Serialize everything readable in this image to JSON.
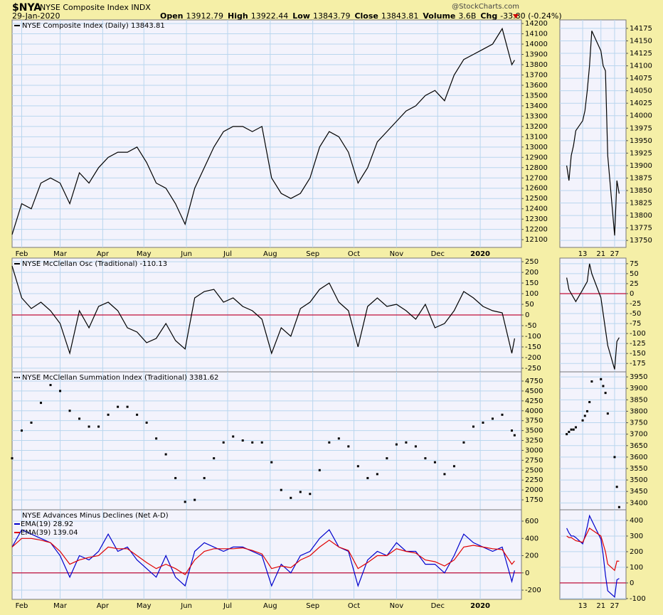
{
  "header": {
    "symbol": "$NYA",
    "name": "NYSE Composite Index INDX",
    "date": "29-Jan-2020",
    "source": "@StockCharts.com",
    "quote": [
      {
        "label": "Open",
        "value": "13912.79"
      },
      {
        "label": "High",
        "value": "13922.44"
      },
      {
        "label": "Low",
        "value": "13843.79"
      },
      {
        "label": "Close",
        "value": "13843.81"
      },
      {
        "label": "Volume",
        "value": "3.6B"
      },
      {
        "label": "Chg",
        "value": "-33.80 (-0.24%)"
      }
    ]
  },
  "chart_data": [
    {
      "type": "line",
      "title": "NYSE Composite Index (Daily) 13843.81",
      "color": "#000000",
      "grid": true,
      "x": [
        0,
        7,
        14,
        21,
        28,
        35,
        42,
        49,
        56,
        63,
        70,
        77,
        84,
        91,
        98,
        105,
        112,
        119,
        126,
        133,
        140,
        147,
        154,
        161,
        168,
        175,
        182,
        189,
        196,
        203,
        210,
        217,
        224,
        231,
        238,
        245,
        252,
        259,
        266,
        273,
        280,
        287,
        294,
        301,
        308,
        315,
        322,
        329,
        336,
        343,
        350,
        357,
        364,
        366
      ],
      "values": [
        12150,
        12450,
        12400,
        12650,
        12700,
        12650,
        12450,
        12750,
        12650,
        12800,
        12900,
        12950,
        12950,
        13000,
        12850,
        12650,
        12600,
        12450,
        12250,
        12600,
        12800,
        13000,
        13150,
        13200,
        13200,
        13150,
        13200,
        12700,
        12550,
        12500,
        12550,
        12700,
        13000,
        13150,
        13100,
        12950,
        12650,
        12800,
        13050,
        13150,
        13250,
        13350,
        13400,
        13500,
        13550,
        13450,
        13700,
        13850,
        13900,
        13950,
        14000,
        14150,
        13800,
        13843.81
      ],
      "xlim": [
        0,
        371
      ],
      "ylim": [
        12025,
        14235
      ],
      "xticks": [
        {
          "value": 7,
          "label": "Feb"
        },
        {
          "value": 35,
          "label": "Mar"
        },
        {
          "value": 66,
          "label": "Apr"
        },
        {
          "value": 96,
          "label": "May"
        },
        {
          "value": 127,
          "label": "Jun"
        },
        {
          "value": 157,
          "label": "Jul"
        },
        {
          "value": 188,
          "label": "Aug"
        },
        {
          "value": 219,
          "label": "Sep"
        },
        {
          "value": 249,
          "label": "Oct"
        },
        {
          "value": 280,
          "label": "Nov"
        },
        {
          "value": 310,
          "label": "Dec"
        },
        {
          "value": 341,
          "label": "2020"
        }
      ],
      "yticks": [
        12100,
        12200,
        12300,
        12400,
        12500,
        12600,
        12700,
        12800,
        12900,
        13000,
        13100,
        13200,
        13300,
        13400,
        13500,
        13600,
        13700,
        13800,
        13900,
        14000,
        14100,
        14200
      ]
    },
    {
      "type": "line",
      "title": "NYSE McClellan Osc (Traditional) -110.13",
      "color": "#000000",
      "grid": true,
      "hline": 0,
      "x": [
        0,
        7,
        14,
        21,
        28,
        35,
        42,
        49,
        56,
        63,
        70,
        77,
        84,
        91,
        98,
        105,
        112,
        119,
        126,
        133,
        140,
        147,
        154,
        161,
        168,
        175,
        182,
        189,
        196,
        203,
        210,
        217,
        224,
        231,
        238,
        245,
        252,
        259,
        266,
        273,
        280,
        287,
        294,
        301,
        308,
        315,
        322,
        329,
        336,
        343,
        350,
        357,
        364,
        366
      ],
      "values": [
        230,
        80,
        30,
        60,
        20,
        -40,
        -180,
        20,
        -60,
        40,
        60,
        20,
        -60,
        -80,
        -130,
        -110,
        -40,
        -120,
        -160,
        80,
        110,
        120,
        60,
        80,
        40,
        20,
        -20,
        -180,
        -60,
        -100,
        30,
        60,
        120,
        150,
        60,
        20,
        -150,
        40,
        80,
        40,
        50,
        20,
        -20,
        50,
        -60,
        -40,
        20,
        110,
        80,
        40,
        20,
        10,
        -180,
        -110.13
      ],
      "xlim": [
        0,
        371
      ],
      "ylim": [
        -267,
        267
      ],
      "xticks": [
        {
          "value": 7,
          "label": "Feb"
        },
        {
          "value": 35,
          "label": "Mar"
        },
        {
          "value": 66,
          "label": "Apr"
        },
        {
          "value": 96,
          "label": "May"
        },
        {
          "value": 127,
          "label": "Jun"
        },
        {
          "value": 157,
          "label": "Jul"
        },
        {
          "value": 188,
          "label": "Aug"
        },
        {
          "value": 219,
          "label": "Sep"
        },
        {
          "value": 249,
          "label": "Oct"
        },
        {
          "value": 280,
          "label": "Nov"
        },
        {
          "value": 310,
          "label": "Dec"
        },
        {
          "value": 341,
          "label": "2020"
        }
      ],
      "yticks": [
        -250,
        -200,
        -150,
        -100,
        -50,
        0,
        50,
        100,
        150,
        200,
        250
      ]
    },
    {
      "type": "scatter",
      "title": "NYSE McClellan Summation Index (Traditional) 3381.62",
      "color": "#000000",
      "grid": true,
      "x": [
        0,
        7,
        14,
        21,
        28,
        35,
        42,
        49,
        56,
        63,
        70,
        77,
        84,
        91,
        98,
        105,
        112,
        119,
        126,
        133,
        140,
        147,
        154,
        161,
        168,
        175,
        182,
        189,
        196,
        203,
        210,
        217,
        224,
        231,
        238,
        245,
        252,
        259,
        266,
        273,
        280,
        287,
        294,
        301,
        308,
        315,
        322,
        329,
        336,
        343,
        350,
        357,
        364,
        366
      ],
      "values": [
        2800,
        3500,
        3700,
        4200,
        4650,
        4500,
        4000,
        3800,
        3600,
        3600,
        3900,
        4100,
        4100,
        3900,
        3700,
        3300,
        2900,
        2300,
        1700,
        1750,
        2300,
        2800,
        3200,
        3350,
        3250,
        3200,
        3200,
        2700,
        2000,
        1800,
        1950,
        1900,
        2500,
        3200,
        3300,
        3100,
        2600,
        2300,
        2400,
        2800,
        3150,
        3200,
        3100,
        2800,
        2700,
        2400,
        2600,
        3200,
        3600,
        3700,
        3800,
        3900,
        3500,
        3381.62
      ],
      "xlim": [
        0,
        371
      ],
      "ylim": [
        1500,
        4983
      ],
      "xticks": [
        {
          "value": 7,
          "label": "Feb"
        },
        {
          "value": 35,
          "label": "Mar"
        },
        {
          "value": 66,
          "label": "Apr"
        },
        {
          "value": 96,
          "label": "May"
        },
        {
          "value": 127,
          "label": "Jun"
        },
        {
          "value": 157,
          "label": "Jul"
        },
        {
          "value": 188,
          "label": "Aug"
        },
        {
          "value": 219,
          "label": "Sep"
        },
        {
          "value": 249,
          "label": "Oct"
        },
        {
          "value": 280,
          "label": "Nov"
        },
        {
          "value": 310,
          "label": "Dec"
        },
        {
          "value": 341,
          "label": "2020"
        }
      ],
      "yticks": [
        1750,
        2000,
        2250,
        2500,
        2750,
        3000,
        3250,
        3500,
        3750,
        4000,
        4250,
        4500,
        4750
      ]
    },
    {
      "type": "line",
      "title": "NYSE Advances Minus Declines (Net A-D)",
      "grid": true,
      "hline": 0,
      "x": [
        0,
        7,
        14,
        21,
        28,
        35,
        42,
        49,
        56,
        63,
        70,
        77,
        84,
        91,
        98,
        105,
        112,
        119,
        126,
        133,
        140,
        147,
        154,
        161,
        168,
        175,
        182,
        189,
        196,
        203,
        210,
        217,
        224,
        231,
        238,
        245,
        252,
        259,
        266,
        273,
        280,
        287,
        294,
        301,
        308,
        315,
        322,
        329,
        336,
        343,
        350,
        357,
        364,
        366
      ],
      "series": [
        {
          "name": "EMA(19) 28.92",
          "color": "#0000cc",
          "values": [
            300,
            500,
            450,
            400,
            350,
            200,
            -50,
            200,
            150,
            250,
            450,
            250,
            300,
            150,
            50,
            -50,
            200,
            -50,
            -150,
            250,
            350,
            300,
            250,
            300,
            300,
            250,
            200,
            -150,
            100,
            0,
            200,
            250,
            400,
            500,
            300,
            250,
            -150,
            150,
            250,
            200,
            350,
            250,
            250,
            100,
            100,
            0,
            200,
            450,
            350,
            300,
            250,
            300,
            -100,
            28.92
          ]
        },
        {
          "name": "EMA(39) 139.04",
          "color": "#e00000",
          "values": [
            300,
            400,
            400,
            380,
            350,
            250,
            100,
            150,
            180,
            200,
            300,
            280,
            280,
            200,
            120,
            50,
            100,
            50,
            -20,
            150,
            250,
            280,
            280,
            280,
            290,
            260,
            220,
            50,
            80,
            60,
            150,
            200,
            300,
            380,
            300,
            260,
            50,
            120,
            200,
            200,
            280,
            250,
            230,
            150,
            130,
            80,
            150,
            300,
            320,
            300,
            280,
            270,
            100,
            139.04
          ]
        }
      ],
      "xlim": [
        0,
        371
      ],
      "ylim": [
        -307,
        732
      ],
      "xticks": [
        {
          "value": 7,
          "label": "Feb"
        },
        {
          "value": 35,
          "label": "Mar"
        },
        {
          "value": 66,
          "label": "Apr"
        },
        {
          "value": 96,
          "label": "May"
        },
        {
          "value": 127,
          "label": "Jun"
        },
        {
          "value": 157,
          "label": "Jul"
        },
        {
          "value": 188,
          "label": "Aug"
        },
        {
          "value": 219,
          "label": "Sep"
        },
        {
          "value": 249,
          "label": "Oct"
        },
        {
          "value": 280,
          "label": "Nov"
        },
        {
          "value": 310,
          "label": "Dec"
        },
        {
          "value": 341,
          "label": "2020"
        }
      ],
      "yticks": [
        -200,
        0,
        200,
        400,
        600
      ]
    },
    {
      "type": "line",
      "color": "#000000",
      "grid": true,
      "x": [
        6,
        7,
        8,
        9,
        10,
        13,
        14,
        15,
        16,
        17,
        21,
        22,
        23,
        24,
        27,
        28,
        29
      ],
      "values": [
        13900,
        13870,
        13920,
        13940,
        13970,
        13990,
        14010,
        14050,
        14100,
        14170,
        14130,
        14100,
        14090,
        13920,
        13760,
        13870,
        13843.81
      ],
      "xlim": [
        3,
        32
      ],
      "ylim": [
        13736,
        14192
      ],
      "xticks": [
        13,
        21,
        27
      ],
      "yticks": [
        13750,
        13775,
        13800,
        13825,
        13850,
        13875,
        13900,
        13925,
        13950,
        13975,
        14000,
        14025,
        14050,
        14075,
        14100,
        14125,
        14150,
        14175
      ]
    },
    {
      "type": "line",
      "color": "#000000",
      "grid": true,
      "hline": 0,
      "x": [
        6,
        7,
        8,
        9,
        10,
        13,
        14,
        15,
        16,
        17,
        21,
        22,
        23,
        24,
        27,
        28,
        29
      ],
      "values": [
        40,
        10,
        0,
        -10,
        -20,
        10,
        20,
        30,
        75,
        50,
        -10,
        -50,
        -90,
        -130,
        -190,
        -120,
        -110.13
      ],
      "xlim": [
        3,
        32
      ],
      "ylim": [
        -196,
        89
      ],
      "xticks": [
        13,
        21,
        27
      ],
      "yticks": [
        -175,
        -150,
        -125,
        -100,
        -75,
        -50,
        -25,
        0,
        25,
        50,
        75
      ]
    },
    {
      "type": "scatter",
      "color": "#000000",
      "grid": true,
      "x": [
        6,
        7,
        8,
        9,
        10,
        13,
        14,
        15,
        16,
        17,
        21,
        22,
        23,
        24,
        27,
        28,
        29
      ],
      "values": [
        3700,
        3710,
        3720,
        3720,
        3730,
        3760,
        3780,
        3800,
        3840,
        3930,
        3940,
        3910,
        3880,
        3790,
        3600,
        3470,
        3381.62
      ],
      "xlim": [
        3,
        32
      ],
      "ylim": [
        3370,
        3972
      ],
      "xticks": [
        13,
        21,
        27
      ],
      "yticks": [
        3400,
        3450,
        3500,
        3550,
        3600,
        3650,
        3700,
        3750,
        3800,
        3850,
        3900,
        3950
      ]
    },
    {
      "type": "line",
      "grid": true,
      "hline": 0,
      "x": [
        6,
        7,
        8,
        9,
        10,
        13,
        14,
        15,
        16,
        17,
        21,
        22,
        23,
        24,
        27,
        28,
        29
      ],
      "series": [
        {
          "color": "#0000cc",
          "values": [
            350,
            320,
            300,
            300,
            290,
            250,
            300,
            360,
            430,
            400,
            280,
            180,
            50,
            -50,
            -90,
            20,
            28.92
          ]
        },
        {
          "color": "#e00000",
          "values": [
            300,
            290,
            290,
            280,
            270,
            260,
            290,
            320,
            350,
            340,
            300,
            250,
            200,
            120,
            80,
            140,
            139.04
          ]
        }
      ],
      "xlim": [
        3,
        32
      ],
      "ylim": [
        -105,
        468
      ],
      "xticks": [
        13,
        21,
        27
      ],
      "yticks": [
        -100,
        0,
        100,
        200,
        300,
        400
      ]
    }
  ]
}
